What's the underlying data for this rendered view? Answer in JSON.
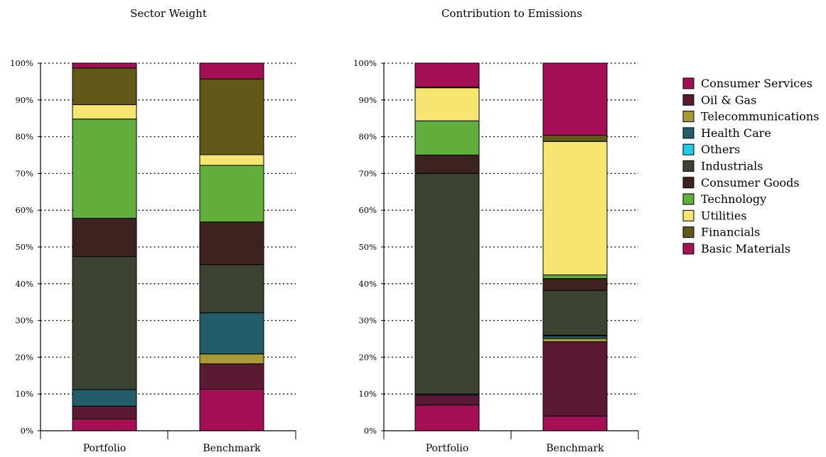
{
  "chart_data": [
    {
      "type": "bar",
      "stacked": true,
      "title": "Sector Weight",
      "categories": [
        "Portfolio",
        "Benchmark"
      ],
      "ylim": [
        0,
        100
      ],
      "yticks": [
        "0%",
        "10%",
        "20%",
        "30%",
        "40%",
        "50%",
        "60%",
        "70%",
        "80%",
        "90%",
        "100%"
      ],
      "grid": true,
      "series": [
        {
          "name": "Basic Materials",
          "values": [
            3.2,
            11.3
          ]
        },
        {
          "name": "Oil & Gas",
          "values": [
            3.5,
            6.9
          ]
        },
        {
          "name": "Telecommunications",
          "values": [
            0.0,
            2.7
          ]
        },
        {
          "name": "Health Care",
          "values": [
            4.5,
            11.2
          ]
        },
        {
          "name": "Others",
          "values": [
            0.0,
            0.0
          ]
        },
        {
          "name": "Industrials",
          "values": [
            36.2,
            13.1
          ]
        },
        {
          "name": "Consumer Goods",
          "values": [
            10.4,
            11.6
          ]
        },
        {
          "name": "Technology",
          "values": [
            27.0,
            15.4
          ]
        },
        {
          "name": "Utilities",
          "values": [
            3.9,
            2.9
          ]
        },
        {
          "name": "Financials",
          "values": [
            10.0,
            20.6
          ]
        },
        {
          "name": "Consumer Services",
          "values": [
            1.3,
            4.3
          ]
        }
      ]
    },
    {
      "type": "bar",
      "stacked": true,
      "title": "Contribution to Emissions",
      "categories": [
        "Portfolio",
        "Benchmark"
      ],
      "ylim": [
        0,
        100
      ],
      "yticks": [
        "0%",
        "10%",
        "20%",
        "30%",
        "40%",
        "50%",
        "60%",
        "70%",
        "80%",
        "90%",
        "100%"
      ],
      "grid": true,
      "series": [
        {
          "name": "Basic Materials",
          "values": [
            7.0,
            4.0
          ]
        },
        {
          "name": "Oil & Gas",
          "values": [
            2.7,
            20.2
          ]
        },
        {
          "name": "Telecommunications",
          "values": [
            0.0,
            0.9
          ]
        },
        {
          "name": "Health Care",
          "values": [
            0.3,
            0.7
          ]
        },
        {
          "name": "Others",
          "values": [
            0.0,
            0.2
          ]
        },
        {
          "name": "Industrials",
          "values": [
            60.0,
            12.2
          ]
        },
        {
          "name": "Consumer Goods",
          "values": [
            5.0,
            3.2
          ]
        },
        {
          "name": "Technology",
          "values": [
            9.3,
            1.0
          ]
        },
        {
          "name": "Utilities",
          "values": [
            9.0,
            36.3
          ]
        },
        {
          "name": "Financials",
          "values": [
            0.2,
            1.7
          ]
        },
        {
          "name": "Consumer Services",
          "values": [
            6.5,
            19.6
          ]
        }
      ]
    }
  ],
  "legend": {
    "placement": "right",
    "items": [
      {
        "label": "Consumer Services",
        "color": "#A50F55"
      },
      {
        "label": "Oil & Gas",
        "color": "#5A1A33"
      },
      {
        "label": "Telecommunications",
        "color": "#A89A38"
      },
      {
        "label": "Health Care",
        "color": "#235D6A"
      },
      {
        "label": "Others",
        "color": "#22CCE6"
      },
      {
        "label": "Industrials",
        "color": "#3C4330"
      },
      {
        "label": "Consumer Goods",
        "color": "#3E2220"
      },
      {
        "label": "Technology",
        "color": "#61AE3C"
      },
      {
        "label": "Utilities",
        "color": "#F6E571"
      },
      {
        "label": "Financials",
        "color": "#625818"
      },
      {
        "label": "Basic Materials",
        "color": "#A50F55"
      }
    ]
  }
}
